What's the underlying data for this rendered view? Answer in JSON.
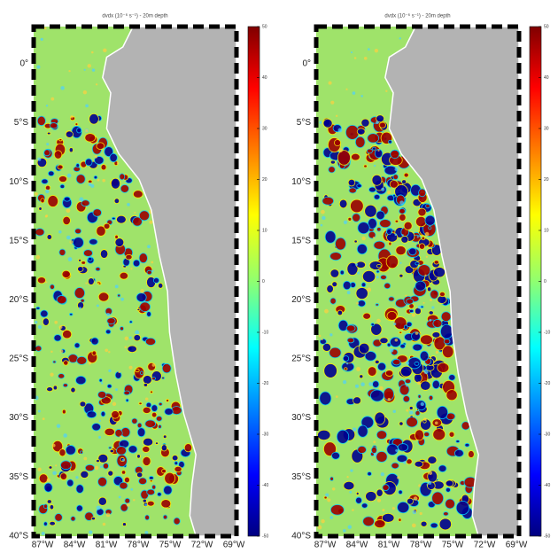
{
  "panels": [
    {
      "title": "dvdx (10⁻⁶ s⁻¹) - 20m depth",
      "lat_labels": [
        "0°",
        "5°S",
        "10°S",
        "15°S",
        "20°S",
        "25°S",
        "30°S",
        "35°S",
        "40°S"
      ],
      "lon_labels": [
        "87°W",
        "84°W",
        "81°W",
        "78°W",
        "75°W",
        "72°W",
        "69°W"
      ],
      "clim": [
        -50,
        50
      ],
      "colorbar_ticks": [
        50,
        40,
        30,
        20,
        10,
        0,
        -10,
        -20,
        -30,
        -40,
        -50
      ]
    },
    {
      "title": "dvdx (10⁻⁶ s⁻¹) - 20m depth",
      "lat_labels": [
        "0°",
        "5°S",
        "10°S",
        "15°S",
        "20°S",
        "25°S",
        "30°S",
        "35°S",
        "40°S"
      ],
      "lon_labels": [
        "87°W",
        "84°W",
        "81°W",
        "78°W",
        "75°W",
        "72°W",
        "69°W"
      ],
      "clim": [
        -50,
        50
      ],
      "colorbar_ticks": [
        50,
        40,
        30,
        20,
        10,
        0,
        -10,
        -20,
        -30,
        -40,
        -50
      ]
    }
  ]
}
